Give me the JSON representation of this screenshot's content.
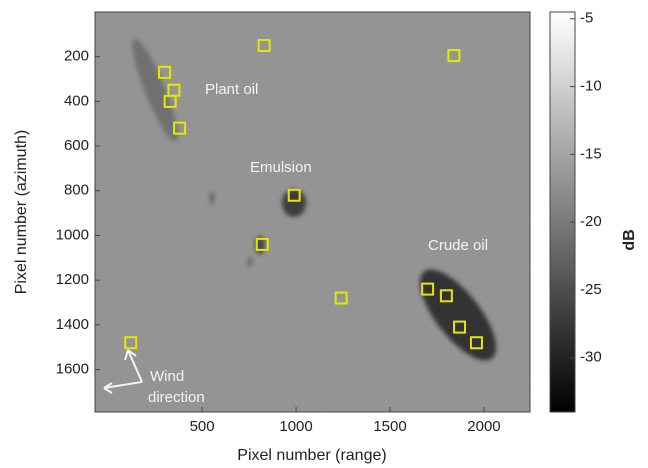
{
  "chart_data": {
    "type": "image",
    "xlabel": "Pixel number (range)",
    "ylabel": "Pixel number (azimuth)",
    "xlim": [
      -70,
      2245
    ],
    "xticks": [
      500,
      1000,
      1500,
      2000
    ],
    "ylim": [
      1790,
      0
    ],
    "yticks": [
      200,
      400,
      600,
      800,
      1000,
      1200,
      1400,
      1600
    ],
    "colorbar": {
      "label": "dB",
      "clim": [
        -34,
        -4.5
      ],
      "ticks": [
        -5,
        -10,
        -15,
        -20,
        -25,
        -30
      ]
    },
    "markers": {
      "color": "#e6e600",
      "x": [
        830,
        1840,
        300,
        350,
        330,
        380,
        990,
        820,
        1240,
        1700,
        1800,
        1870,
        1960,
        120
      ],
      "y": [
        150,
        195,
        270,
        350,
        400,
        520,
        820,
        1040,
        1280,
        1240,
        1270,
        1410,
        1480,
        1480
      ]
    },
    "annotations": [
      "Plant oil",
      "Emulsion",
      "Crude oil",
      "Wind",
      "direction"
    ]
  }
}
